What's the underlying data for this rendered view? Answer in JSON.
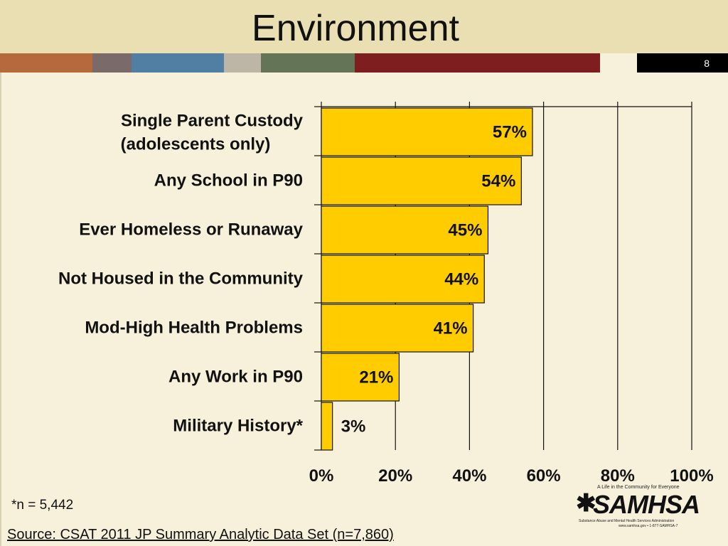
{
  "header": {
    "title": "Environment",
    "slide_number": "8",
    "stripe_colors": [
      "#B5693C",
      "#7A6A6A",
      "#517FA4",
      "#BDB6A6",
      "#637457",
      "#7E1E1E",
      "#F7F1DC",
      "#000000"
    ]
  },
  "chart_data": {
    "type": "bar",
    "orientation": "horizontal",
    "categories": [
      "Single Parent Custody (adolescents only)",
      "Any School in P90",
      "Ever Homeless or Runaway",
      "Not Housed in the Community",
      "Mod-High Health Problems",
      "Any Work in P90",
      "Military History*"
    ],
    "category_lines": [
      [
        "Single Parent Custody",
        "(adolescents only)"
      ],
      [
        "Any School in P90"
      ],
      [
        "Ever Homeless or Runaway"
      ],
      [
        "Not Housed in the Community"
      ],
      [
        "Mod-High Health Problems"
      ],
      [
        "Any Work in P90"
      ],
      [
        "Military History*"
      ]
    ],
    "values": [
      57,
      54,
      45,
      44,
      41,
      21,
      3
    ],
    "value_labels": [
      "57%",
      "54%",
      "45%",
      "44%",
      "41%",
      "21%",
      "3%"
    ],
    "xlim": [
      0,
      100
    ],
    "xticks": [
      0,
      20,
      40,
      60,
      80,
      100
    ],
    "xtick_labels": [
      "0%",
      "20%",
      "40%",
      "60%",
      "80%",
      "100%"
    ],
    "bar_color": "#FFCC00",
    "grid": true,
    "legend": "none"
  },
  "footer": {
    "note": "*n = 5,442",
    "source": "Source: CSAT 2011 JP Summary Analytic Data Set (n=7,860)"
  },
  "logo": {
    "tagline": "A Life in the Community for Everyone",
    "name": "SAMHSA",
    "subtitle": "Substance Abuse and Mental Health Services Administration",
    "contact": "www.samhsa.gov • 1-877-SAMHSA-7"
  }
}
